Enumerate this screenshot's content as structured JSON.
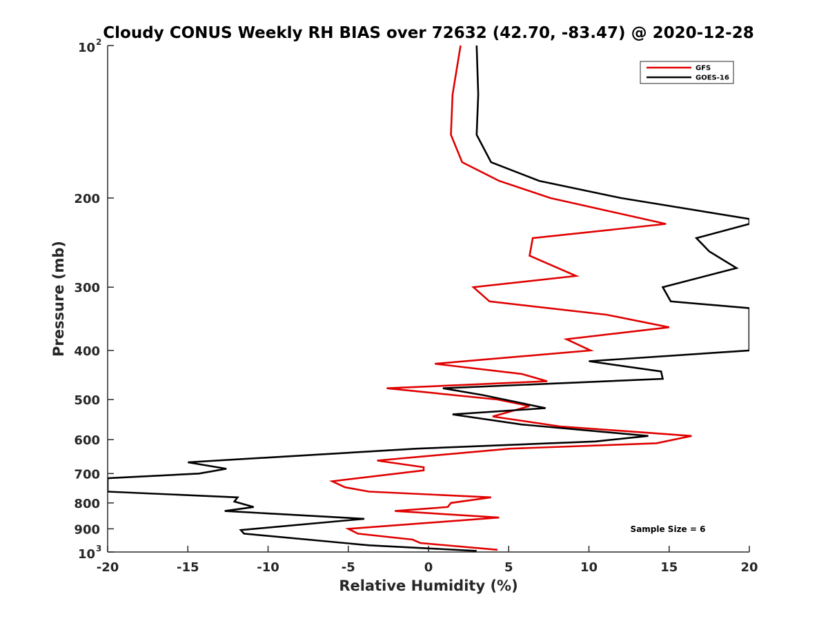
{
  "chart_data": {
    "type": "line",
    "title": "Cloudy CONUS Weekly RH BIAS over 72632 (42.70, -83.47) @ 2020-12-28",
    "xlabel": "Relative Humidity (%)",
    "ylabel": "Pressure (mb)",
    "xlim": [
      -20,
      20
    ],
    "ylim": [
      100,
      1000
    ],
    "yscale": "log",
    "y_reversed": true,
    "x_ticks": [
      {
        "value": -20,
        "label": "-20"
      },
      {
        "value": -15,
        "label": "-15"
      },
      {
        "value": -10,
        "label": "-10"
      },
      {
        "value": -5,
        "label": "-5"
      },
      {
        "value": 0,
        "label": "0"
      },
      {
        "value": 5,
        "label": "5"
      },
      {
        "value": 10,
        "label": "10"
      },
      {
        "value": 15,
        "label": "15"
      },
      {
        "value": 20,
        "label": "20"
      }
    ],
    "y_ticks": [
      {
        "value": 100,
        "label": "10",
        "sup": "2"
      },
      {
        "value": 200,
        "label": "200"
      },
      {
        "value": 300,
        "label": "300"
      },
      {
        "value": 400,
        "label": "400"
      },
      {
        "value": 500,
        "label": "500"
      },
      {
        "value": 600,
        "label": "600"
      },
      {
        "value": 700,
        "label": "700"
      },
      {
        "value": 800,
        "label": "800"
      },
      {
        "value": 900,
        "label": "900"
      },
      {
        "value": 1000,
        "label": "10",
        "sup": "3"
      }
    ],
    "grid": false,
    "legend_position": "top-right",
    "annotation": "Sample Size = 6",
    "series": [
      {
        "name": "GFS",
        "color": "#e00000",
        "points": [
          {
            "x": 2.0,
            "y": 100
          },
          {
            "x": 1.5,
            "y": 125
          },
          {
            "x": 1.4,
            "y": 150
          },
          {
            "x": 2.1,
            "y": 170
          },
          {
            "x": 4.4,
            "y": 185
          },
          {
            "x": 7.6,
            "y": 200
          },
          {
            "x": 14.8,
            "y": 225
          },
          {
            "x": 6.5,
            "y": 240
          },
          {
            "x": 6.3,
            "y": 260
          },
          {
            "x": 9.2,
            "y": 285
          },
          {
            "x": 2.8,
            "y": 300
          },
          {
            "x": 3.8,
            "y": 320
          },
          {
            "x": 11.1,
            "y": 340
          },
          {
            "x": 15.0,
            "y": 360
          },
          {
            "x": 8.6,
            "y": 380
          },
          {
            "x": 10.1,
            "y": 400
          },
          {
            "x": 0.4,
            "y": 425
          },
          {
            "x": 5.8,
            "y": 445
          },
          {
            "x": 7.4,
            "y": 460
          },
          {
            "x": -2.6,
            "y": 475
          },
          {
            "x": 4.3,
            "y": 500
          },
          {
            "x": 6.3,
            "y": 515
          },
          {
            "x": 4.0,
            "y": 540
          },
          {
            "x": 8.2,
            "y": 565
          },
          {
            "x": 16.4,
            "y": 590
          },
          {
            "x": 14.2,
            "y": 610
          },
          {
            "x": 5.1,
            "y": 625
          },
          {
            "x": -3.2,
            "y": 660
          },
          {
            "x": -0.3,
            "y": 680
          },
          {
            "x": -0.3,
            "y": 690
          },
          {
            "x": -6.0,
            "y": 725
          },
          {
            "x": -5.2,
            "y": 745
          },
          {
            "x": -3.7,
            "y": 760
          },
          {
            "x": 3.9,
            "y": 780
          },
          {
            "x": 1.4,
            "y": 800
          },
          {
            "x": 1.2,
            "y": 815
          },
          {
            "x": -2.1,
            "y": 830
          },
          {
            "x": 4.4,
            "y": 855
          },
          {
            "x": -5.0,
            "y": 900
          },
          {
            "x": -4.4,
            "y": 920
          },
          {
            "x": -1.0,
            "y": 945
          },
          {
            "x": -0.5,
            "y": 960
          },
          {
            "x": 4.3,
            "y": 990
          }
        ]
      },
      {
        "name": "GOES-16",
        "color": "#000000",
        "points": [
          {
            "x": 3.0,
            "y": 100
          },
          {
            "x": 3.1,
            "y": 125
          },
          {
            "x": 3.0,
            "y": 150
          },
          {
            "x": 3.9,
            "y": 170
          },
          {
            "x": 6.9,
            "y": 185
          },
          {
            "x": 12.0,
            "y": 200
          },
          {
            "x": 20.0,
            "y": 220
          },
          {
            "x": 20.0,
            "y": 225
          },
          {
            "x": 16.7,
            "y": 240
          },
          {
            "x": 17.5,
            "y": 255
          },
          {
            "x": 19.2,
            "y": 275
          },
          {
            "x": 14.6,
            "y": 300
          },
          {
            "x": 15.1,
            "y": 320
          },
          {
            "x": 20.0,
            "y": 330
          },
          {
            "x": 20.0,
            "y": 400
          },
          {
            "x": 10.0,
            "y": 420
          },
          {
            "x": 14.5,
            "y": 440
          },
          {
            "x": 14.6,
            "y": 455
          },
          {
            "x": 0.9,
            "y": 475
          },
          {
            "x": 3.4,
            "y": 490
          },
          {
            "x": 7.3,
            "y": 520
          },
          {
            "x": 1.5,
            "y": 535
          },
          {
            "x": 5.8,
            "y": 560
          },
          {
            "x": 13.7,
            "y": 590
          },
          {
            "x": 10.4,
            "y": 605
          },
          {
            "x": -0.7,
            "y": 625
          },
          {
            "x": -15.0,
            "y": 665
          },
          {
            "x": -12.6,
            "y": 685
          },
          {
            "x": -14.3,
            "y": 700
          },
          {
            "x": -20.0,
            "y": 715
          },
          {
            "x": -20.0,
            "y": 760
          },
          {
            "x": -11.9,
            "y": 780
          },
          {
            "x": -12.1,
            "y": 795
          },
          {
            "x": -10.9,
            "y": 815
          },
          {
            "x": -12.7,
            "y": 830
          },
          {
            "x": -4.0,
            "y": 860
          },
          {
            "x": -11.7,
            "y": 905
          },
          {
            "x": -11.5,
            "y": 920
          },
          {
            "x": -3.7,
            "y": 970
          },
          {
            "x": 3.0,
            "y": 995
          }
        ]
      }
    ]
  }
}
